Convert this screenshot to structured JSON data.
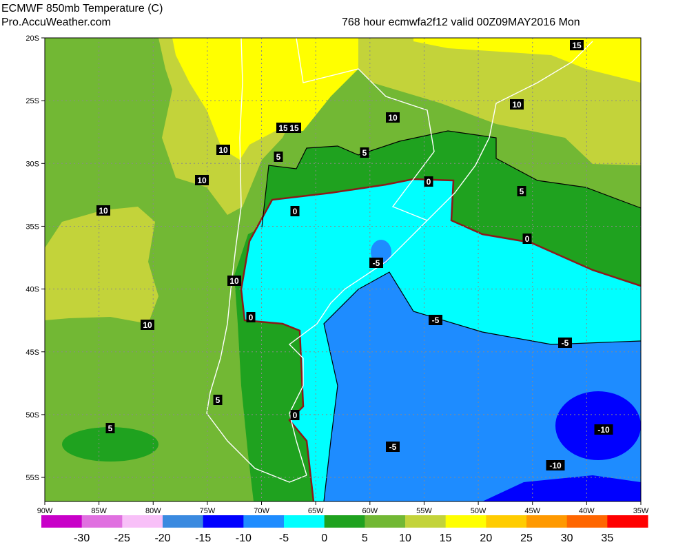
{
  "header": {
    "title": "ECMWF 850mb Temperature (C)",
    "source": "Pro.AccuWeather.com",
    "run": "768 hour ecmwfa2f12 valid  00Z09MAY2016  Mon"
  },
  "latitude_labels": [
    "20S",
    "25S",
    "30S",
    "35S",
    "40S",
    "45S",
    "50S",
    "55S"
  ],
  "longitude_labels": [
    "90W",
    "85W",
    "80W",
    "75W",
    "70W",
    "65W",
    "60W",
    "55W",
    "50W",
    "45W",
    "40W",
    "35W"
  ],
  "contour_labels": [
    "15",
    "10",
    "10",
    "15",
    "10",
    "15",
    "5",
    "5",
    "10",
    "10",
    "0",
    "5",
    "0",
    "0",
    "-5",
    "10",
    "0",
    "-5",
    "10",
    "-5",
    "5",
    "0",
    "5",
    "-10",
    "-5",
    "-10"
  ],
  "color_scale": {
    "labels": [
      "-30",
      "-25",
      "-20",
      "-15",
      "-10",
      "-5",
      "0",
      "5",
      "10",
      "15",
      "20",
      "25",
      "30",
      "35"
    ],
    "colors": [
      "#c800c8",
      "#e070e0",
      "#f8c0f8",
      "#3a8ae0",
      "#0000ff",
      "#1e8cff",
      "#00ffff",
      "#1fa21f",
      "#72b834",
      "#c3d33a",
      "#ffff00",
      "#ffcc00",
      "#ff9900",
      "#ff6600",
      "#ff0000"
    ]
  }
}
